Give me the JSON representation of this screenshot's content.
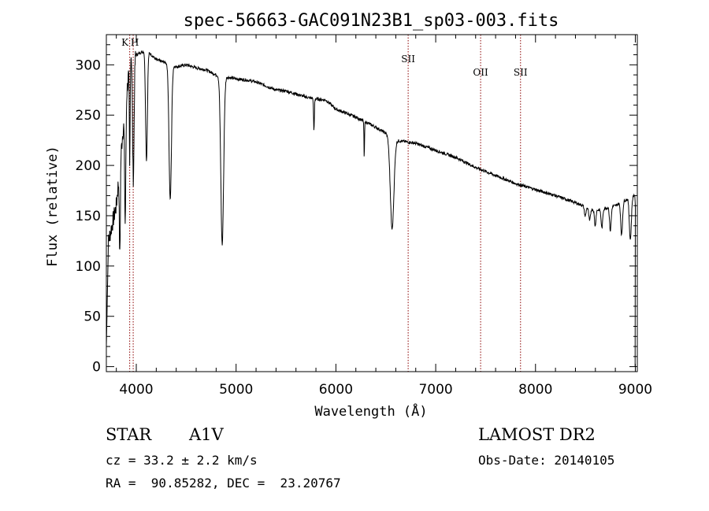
{
  "chart_data": {
    "type": "line",
    "title": "spec-56663-GAC091N23B1_sp03-003.fits",
    "xlabel": "Wavelength (Å)",
    "ylabel": "Flux (relative)",
    "xlim": [
      3700,
      9020
    ],
    "ylim": [
      -5,
      330
    ],
    "xticks": [
      4000,
      5000,
      6000,
      7000,
      8000,
      9000
    ],
    "yticks": [
      0,
      50,
      100,
      150,
      200,
      250,
      300
    ],
    "continuum": [
      [
        3700,
        115
      ],
      [
        3800,
        160
      ],
      [
        3880,
        250
      ],
      [
        3950,
        315
      ],
      [
        4000,
        310
      ],
      [
        4100,
        315
      ],
      [
        4200,
        305
      ],
      [
        4300,
        302
      ],
      [
        4400,
        298
      ],
      [
        4500,
        300
      ],
      [
        4600,
        297
      ],
      [
        4700,
        295
      ],
      [
        4800,
        290
      ],
      [
        4900,
        288
      ],
      [
        5000,
        286
      ],
      [
        5100,
        285
      ],
      [
        5200,
        283
      ],
      [
        5300,
        279
      ],
      [
        5400,
        275
      ],
      [
        5500,
        274
      ],
      [
        5600,
        271
      ],
      [
        5700,
        268
      ],
      [
        5800,
        266
      ],
      [
        5900,
        265
      ],
      [
        6000,
        256
      ],
      [
        6200,
        248
      ],
      [
        6400,
        238
      ],
      [
        6500,
        232
      ],
      [
        6600,
        225
      ],
      [
        6800,
        222
      ],
      [
        7000,
        215
      ],
      [
        7200,
        208
      ],
      [
        7400,
        198
      ],
      [
        7600,
        190
      ],
      [
        7800,
        182
      ],
      [
        8000,
        176
      ],
      [
        8200,
        170
      ],
      [
        8400,
        163
      ],
      [
        8600,
        155
      ],
      [
        8800,
        160
      ],
      [
        9000,
        171
      ]
    ],
    "absorption": [
      [
        3835,
        0.45,
        5
      ],
      [
        3889,
        0.45,
        6
      ],
      [
        3934,
        0.35,
        4
      ],
      [
        3970,
        0.4,
        8
      ],
      [
        4102,
        0.35,
        9
      ],
      [
        4340,
        0.45,
        12
      ],
      [
        4861,
        0.58,
        14
      ],
      [
        5780,
        0.12,
        4
      ],
      [
        6284,
        0.15,
        3
      ],
      [
        6563,
        0.4,
        18
      ],
      [
        8498,
        0.06,
        8
      ],
      [
        8542,
        0.08,
        8
      ],
      [
        8598,
        0.1,
        7
      ],
      [
        8665,
        0.12,
        8
      ],
      [
        8750,
        0.15,
        8
      ],
      [
        8863,
        0.2,
        9
      ],
      [
        8950,
        0.25,
        10
      ]
    ],
    "marker_lines": [
      {
        "x": 3934,
        "label": "K"
      },
      {
        "x": 3969,
        "label": "H"
      },
      {
        "x": 6724,
        "label": "SII"
      },
      {
        "x": 7450,
        "label": "OII"
      },
      {
        "x": 7850,
        "label": "SII"
      }
    ],
    "line_color": "#000000",
    "marker_color": "#8b0000"
  },
  "info": {
    "class_label": "STAR",
    "subclass": "A1V",
    "survey": "LAMOST DR2",
    "cz_text": "cz = 33.2 ± 2.2 km/s",
    "obs_date_text": "Obs-Date: 20140105",
    "radec_text": "RA =  90.85282, DEC =  23.20767"
  }
}
